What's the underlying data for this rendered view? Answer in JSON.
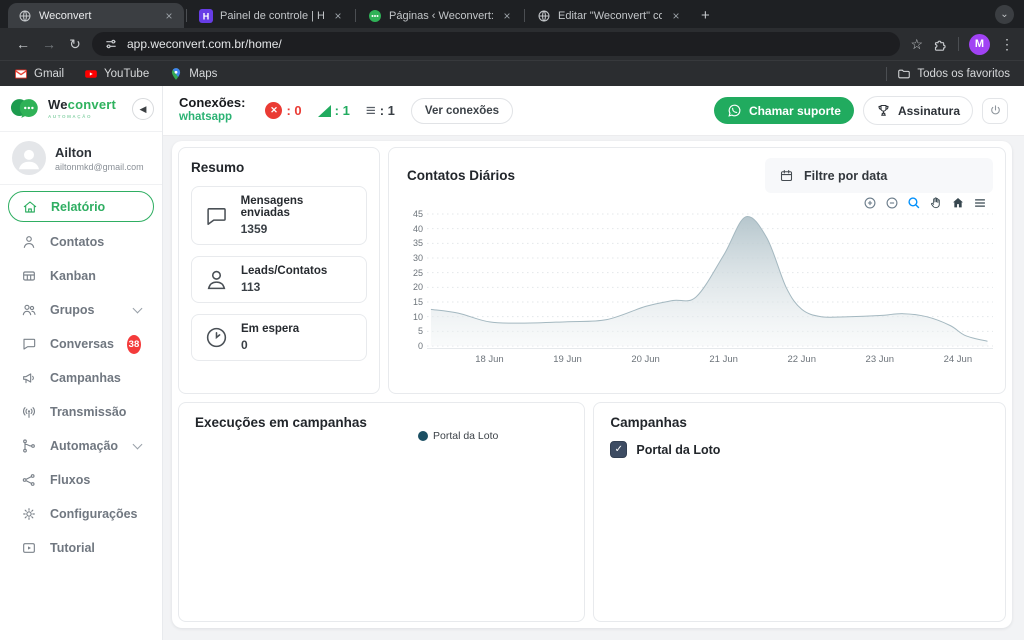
{
  "browser": {
    "tabs": [
      {
        "title": "Weconvert",
        "active": true
      },
      {
        "title": "Painel de controle | Hostinger",
        "active": false
      },
      {
        "title": "Páginas ‹ Weconvert: Atendi",
        "active": false
      },
      {
        "title": "Editar \"Weconvert\" com o Ele",
        "active": false
      }
    ],
    "url": "app.weconvert.com.br/home/",
    "profile_initial": "M",
    "bookmarks": [
      {
        "label": "Gmail"
      },
      {
        "label": "YouTube"
      },
      {
        "label": "Maps"
      }
    ],
    "all_favorites": "Todos os favoritos",
    "icons": {
      "back": "←",
      "forward": "→",
      "reload": "↻",
      "star": "☆",
      "kebab": "⋮",
      "close": "×",
      "new_tab": "+",
      "tab_search": "⌄",
      "check": "✓"
    }
  },
  "sidebar": {
    "brand": {
      "we": "We",
      "convert": "convert",
      "tagline": "AUTOMAÇÃO"
    },
    "user": {
      "name": "Ailton",
      "email": "ailtonmkd@gmail.com"
    },
    "items": [
      {
        "label": "Relatório",
        "active": true
      },
      {
        "label": "Contatos"
      },
      {
        "label": "Kanban"
      },
      {
        "label": "Grupos",
        "chevron": true
      },
      {
        "label": "Conversas",
        "badge": "38"
      },
      {
        "label": "Campanhas"
      },
      {
        "label": "Transmissão"
      },
      {
        "label": "Automação",
        "chevron": true
      },
      {
        "label": "Fluxos"
      },
      {
        "label": "Configurações"
      },
      {
        "label": "Tutorial"
      }
    ]
  },
  "header": {
    "connections_label": "Conexões:",
    "connections_channel": "whatsapp",
    "disconnected_count": ": 0",
    "connected_count": ": 1",
    "queue_count": ": 1",
    "view_connections": "Ver conexões",
    "support_button": "Chamar suporte",
    "subscription_button": "Assinatura"
  },
  "summary": {
    "title": "Resumo",
    "stats": [
      {
        "label": "Mensagens enviadas",
        "value": "1359"
      },
      {
        "label": "Leads/Contatos",
        "value": "113"
      },
      {
        "label": "Em espera",
        "value": "0"
      }
    ]
  },
  "chart_card": {
    "title": "Contatos Diários",
    "filter_label": "Filtre por data"
  },
  "chart_data": {
    "type": "area",
    "title": "Contatos Diários",
    "x_unit": "day of June",
    "points": [
      [
        17.25,
        12.5
      ],
      [
        17.6,
        11.2
      ],
      [
        18,
        8.2
      ],
      [
        18.45,
        7.8
      ],
      [
        19,
        8.3
      ],
      [
        19.5,
        9
      ],
      [
        20,
        13.5
      ],
      [
        20.35,
        15.5
      ],
      [
        20.65,
        16.8
      ],
      [
        21,
        31
      ],
      [
        21.28,
        44
      ],
      [
        21.55,
        37
      ],
      [
        21.8,
        20
      ],
      [
        22,
        12.5
      ],
      [
        22.25,
        10
      ],
      [
        22.6,
        10
      ],
      [
        23,
        10.4
      ],
      [
        23.3,
        11
      ],
      [
        23.6,
        10
      ],
      [
        23.9,
        7
      ],
      [
        24.1,
        3.5
      ],
      [
        24.38,
        1.6
      ]
    ],
    "xticks": [
      {
        "v": 18,
        "label": "18 Jun"
      },
      {
        "v": 19,
        "label": "19 Jun"
      },
      {
        "v": 20,
        "label": "20 Jun"
      },
      {
        "v": 21,
        "label": "21 Jun"
      },
      {
        "v": 22,
        "label": "22 Jun"
      },
      {
        "v": 23,
        "label": "23 Jun"
      },
      {
        "v": 24,
        "label": "24 Jun"
      }
    ],
    "yticks": [
      0,
      5,
      10,
      15,
      20,
      25,
      30,
      35,
      40,
      45
    ],
    "ylim": [
      0,
      45
    ],
    "xlim": [
      17.2,
      24.45
    ],
    "grid": "horizontal dotted",
    "legend_position": "none",
    "fill_top": "#b2c3ca",
    "fill_bottom": "#f2f5f6",
    "line": "#a4b8c0"
  },
  "executions_card": {
    "title": "Execuções em campanhas",
    "legend": [
      {
        "label": "Portal da Loto",
        "color": "#1b4f63"
      }
    ]
  },
  "campaigns_card": {
    "title": "Campanhas",
    "items": [
      {
        "label": "Portal da Loto",
        "checked": true
      }
    ]
  },
  "colors": {
    "brand_green": "#21ab5f",
    "error_red": "#ea3b34",
    "badge_red": "#f43b3b",
    "legend_dot": "#1b4f63",
    "checkbox": "#3d4c63",
    "avatar_purple": "#a142f4"
  }
}
